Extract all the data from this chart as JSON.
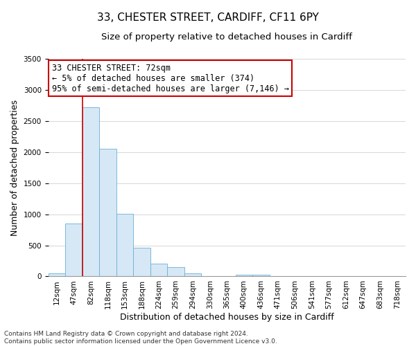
{
  "title": "33, CHESTER STREET, CARDIFF, CF11 6PY",
  "subtitle": "Size of property relative to detached houses in Cardiff",
  "xlabel": "Distribution of detached houses by size in Cardiff",
  "ylabel": "Number of detached properties",
  "bins": [
    "12sqm",
    "47sqm",
    "82sqm",
    "118sqm",
    "153sqm",
    "188sqm",
    "224sqm",
    "259sqm",
    "294sqm",
    "330sqm",
    "365sqm",
    "400sqm",
    "436sqm",
    "471sqm",
    "506sqm",
    "541sqm",
    "577sqm",
    "612sqm",
    "647sqm",
    "683sqm",
    "718sqm"
  ],
  "values": [
    55,
    850,
    2720,
    2060,
    1010,
    460,
    210,
    145,
    55,
    0,
    0,
    30,
    25,
    0,
    0,
    0,
    0,
    0,
    0,
    0,
    0
  ],
  "bar_color": "#d6e8f5",
  "bar_edge_color": "#6aaed6",
  "vline_color": "#cc0000",
  "vline_x_index": 1.5,
  "annotation_text": "33 CHESTER STREET: 72sqm\n← 5% of detached houses are smaller (374)\n95% of semi-detached houses are larger (7,146) →",
  "annotation_box_facecolor": "#ffffff",
  "annotation_box_edgecolor": "#cc0000",
  "ylim": [
    0,
    3500
  ],
  "yticks": [
    0,
    500,
    1000,
    1500,
    2000,
    2500,
    3000,
    3500
  ],
  "footer_line1": "Contains HM Land Registry data © Crown copyright and database right 2024.",
  "footer_line2": "Contains public sector information licensed under the Open Government Licence v3.0.",
  "bg_color": "#ffffff",
  "grid_color": "#d0d0d0",
  "title_fontsize": 11,
  "subtitle_fontsize": 9.5,
  "axis_label_fontsize": 9,
  "tick_fontsize": 7.5,
  "annotation_fontsize": 8.5,
  "footer_fontsize": 6.5
}
